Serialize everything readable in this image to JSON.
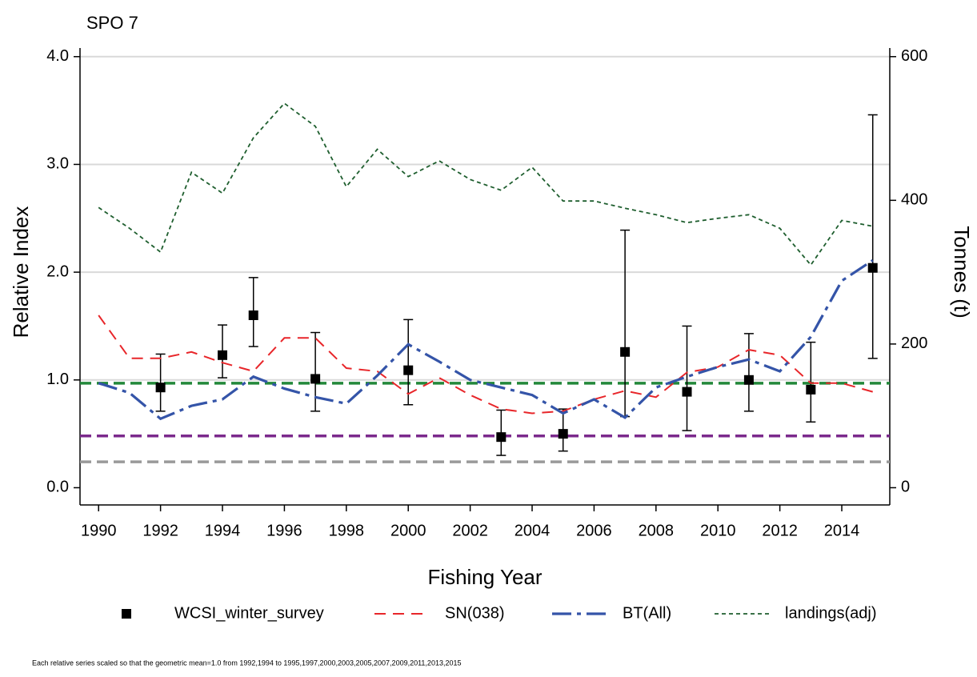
{
  "chart_data": {
    "type": "line",
    "title": "SPO 7",
    "x_label": "Fishing Year",
    "y_label": "Relative Index",
    "y2_label": "Tonnes (t)",
    "footnote": "Each relative series scaled so that the geometric mean=1.0 from 1992,1994 to 1995,1997,2000,2003,2005,2007,2009,2011,2013,2015",
    "x": [
      1990,
      1991,
      1992,
      1993,
      1994,
      1995,
      1996,
      1997,
      1998,
      1999,
      2000,
      2001,
      2002,
      2003,
      2004,
      2005,
      2006,
      2007,
      2008,
      2009,
      2010,
      2011,
      2012,
      2013,
      2014,
      2015
    ],
    "xlim": [
      1989.4,
      2015.55
    ],
    "xticks": [
      1990,
      1992,
      1994,
      1996,
      1998,
      2000,
      2002,
      2004,
      2006,
      2008,
      2010,
      2012,
      2014
    ],
    "ylim": [
      -0.16,
      4.08
    ],
    "yticks": [
      {
        "value": 0,
        "label": "0.0"
      },
      {
        "value": 1,
        "label": "1.0"
      },
      {
        "value": 2,
        "label": "2.0"
      },
      {
        "value": 3,
        "label": "3.0"
      },
      {
        "value": 4,
        "label": "4.0"
      }
    ],
    "y2lim": [
      -24,
      612
    ],
    "y2ticks": [
      0,
      200,
      400,
      600
    ],
    "grid": true,
    "series": [
      {
        "name": "WCSI_winter_survey",
        "color": "#000000",
        "style": "points",
        "values": [
          null,
          null,
          0.93,
          null,
          1.23,
          1.6,
          null,
          1.01,
          null,
          null,
          1.09,
          null,
          null,
          0.47,
          null,
          0.5,
          null,
          1.26,
          null,
          0.89,
          null,
          1.0,
          null,
          0.91,
          null,
          2.04
        ],
        "lower": [
          null,
          null,
          0.71,
          null,
          1.02,
          1.31,
          null,
          0.71,
          null,
          null,
          0.77,
          null,
          null,
          0.3,
          null,
          0.34,
          null,
          0.66,
          null,
          0.53,
          null,
          0.71,
          null,
          0.61,
          null,
          1.2
        ],
        "upper": [
          null,
          null,
          1.24,
          null,
          1.51,
          1.95,
          null,
          1.44,
          null,
          null,
          1.56,
          null,
          null,
          0.72,
          null,
          0.73,
          null,
          2.39,
          null,
          1.5,
          null,
          1.43,
          null,
          1.35,
          null,
          3.46
        ]
      },
      {
        "name": "SN(038)",
        "color": "#e8262a",
        "style": "dashed",
        "values": [
          1.6,
          1.2,
          1.2,
          1.26,
          1.16,
          1.08,
          1.39,
          1.39,
          1.11,
          1.08,
          0.87,
          1.02,
          0.86,
          0.73,
          0.69,
          0.71,
          0.82,
          0.9,
          0.84,
          1.07,
          1.12,
          1.28,
          1.23,
          0.97,
          0.97,
          0.89
        ]
      },
      {
        "name": "BT(All)",
        "color": "#3454a8",
        "style": "dashdot",
        "values": [
          0.97,
          0.88,
          0.64,
          0.76,
          0.82,
          1.03,
          0.92,
          0.84,
          0.78,
          1.04,
          1.33,
          1.17,
          1.0,
          0.93,
          0.86,
          0.69,
          0.82,
          0.65,
          0.93,
          1.03,
          1.12,
          1.19,
          1.08,
          1.4,
          1.92,
          2.11
        ]
      },
      {
        "name": "landings(adj)",
        "color": "#1e5e2e",
        "style": "dotted",
        "axis": "y2",
        "values": [
          390,
          361,
          328,
          439,
          410,
          487,
          535,
          503,
          419,
          471,
          433,
          455,
          429,
          414,
          446,
          399,
          399,
          389,
          380,
          369,
          375,
          380,
          361,
          310,
          372,
          364
        ]
      }
    ],
    "hlines": [
      {
        "value": 0.97,
        "color": "#23883a"
      },
      {
        "value": 0.48,
        "color": "#7b2a8c"
      },
      {
        "value": 0.24,
        "color": "#9a9a9a"
      }
    ]
  }
}
